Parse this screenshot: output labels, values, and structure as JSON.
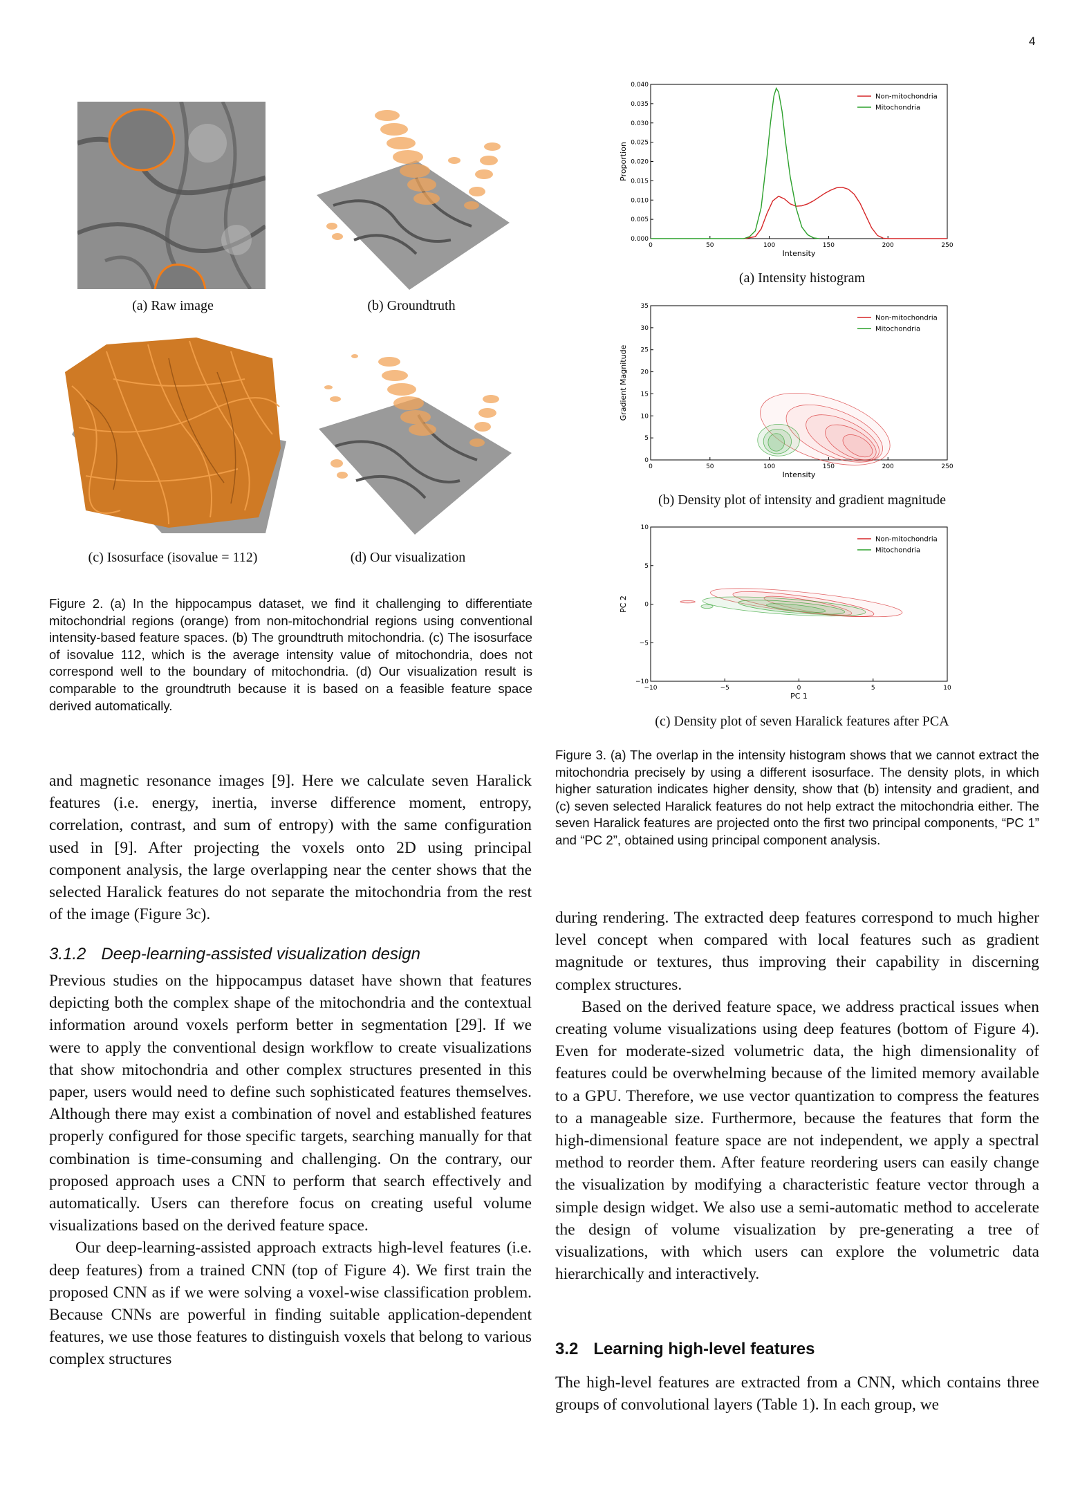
{
  "page_number": "4",
  "figure2": {
    "subcaptions": [
      "(a) Raw image",
      "(b) Groundtruth",
      "(c) Isosurface (isovalue = 112)",
      "(d) Our visualization"
    ],
    "caption": "Figure 2. (a) In the hippocampus dataset, we find it challenging to differentiate mitochondrial regions (orange) from non-mitochondrial regions using conventional intensity-based feature spaces. (b) The groundtruth mitochondria. (c) The isosurface of isovalue 112, which is the average intensity value of mitochondria, does not correspond well to the boundary of mitochondria. (d) Our visualization result is comparable to the groundtruth because it is based on a feasible feature space derived automatically."
  },
  "figure3": {
    "subcaptions": [
      "(a) Intensity histogram",
      "(b) Density plot of intensity and gradient magnitude",
      "(c) Density plot of seven Haralick features after PCA"
    ],
    "caption": "Figure 3. (a) The overlap in the intensity histogram shows that we cannot extract the mitochondria precisely by using a different isosurface. The density plots, in which higher saturation indicates higher density, show that (b) intensity and gradient, and (c) seven selected Haralick features do not help extract the mitochondria either. The seven Haralick features are projected onto the first two principal components, “PC 1” and “PC 2”, obtained using principal component analysis."
  },
  "chart_data": [
    {
      "type": "line",
      "xlabel": "Intensity",
      "ylabel": "Proportion",
      "xlim": [
        0,
        255
      ],
      "ylim": [
        0,
        0.04
      ],
      "xticks": [
        "0",
        "50",
        "100",
        "150",
        "200",
        "250"
      ],
      "yticks": [
        "0.000",
        "0.005",
        "0.010",
        "0.015",
        "0.020",
        "0.025",
        "0.030",
        "0.035",
        "0.040"
      ],
      "legend": "top-right",
      "series": [
        {
          "name": "Non-mitochondria",
          "color": "#d62728",
          "x": [
            80,
            90,
            95,
            100,
            105,
            110,
            115,
            120,
            125,
            130,
            135,
            140,
            145,
            150,
            155,
            160,
            165,
            170,
            175,
            180,
            185,
            190,
            195,
            200,
            205
          ],
          "y": [
            0,
            0.0005,
            0.0025,
            0.0065,
            0.0098,
            0.011,
            0.0103,
            0.009,
            0.0084,
            0.0085,
            0.009,
            0.0098,
            0.0108,
            0.0118,
            0.0126,
            0.0132,
            0.0133,
            0.0128,
            0.0115,
            0.0092,
            0.006,
            0.0028,
            0.0008,
            0.0001,
            0
          ]
        },
        {
          "name": "Mitochondria",
          "color": "#2ca02c",
          "x": [
            80,
            85,
            90,
            95,
            100,
            103,
            106,
            108,
            110,
            113,
            116,
            120,
            125,
            130,
            135,
            140,
            145
          ],
          "y": [
            0,
            0.0005,
            0.002,
            0.008,
            0.021,
            0.03,
            0.037,
            0.039,
            0.038,
            0.033,
            0.025,
            0.016,
            0.008,
            0.003,
            0.001,
            0.0002,
            0
          ]
        }
      ]
    },
    {
      "type": "scatter",
      "xlabel": "Intensity",
      "ylabel": "Gradient Magnitude",
      "xlim": [
        0,
        255
      ],
      "ylim": [
        0,
        35
      ],
      "xticks": [
        "0",
        "50",
        "100",
        "150",
        "200",
        "250"
      ],
      "yticks": [
        "0",
        "5",
        "10",
        "15",
        "20",
        "25",
        "30",
        "35"
      ],
      "legend": "top-right",
      "series": [
        {
          "name": "Non-mitochondria",
          "color": "#d62728",
          "kind": "density"
        },
        {
          "name": "Mitochondria",
          "color": "#2ca02c",
          "kind": "density"
        }
      ]
    },
    {
      "type": "scatter",
      "xlabel": "PC 1",
      "ylabel": "PC 2",
      "xlim": [
        -10,
        10
      ],
      "ylim": [
        -10,
        10
      ],
      "xticks": [
        "−10",
        "−5",
        "0",
        "5",
        "10"
      ],
      "yticks": [
        "−10",
        "−5",
        "0",
        "5",
        "10"
      ],
      "legend": "top-right",
      "series": [
        {
          "name": "Non-mitochondria",
          "color": "#d62728",
          "kind": "density"
        },
        {
          "name": "Mitochondria",
          "color": "#2ca02c",
          "kind": "density"
        }
      ]
    }
  ],
  "left_column": {
    "p1": "and magnetic resonance images [9]. Here we calculate seven Haralick features (i.e. energy, inertia, inverse difference moment, entropy, correlation, contrast, and sum of entropy) with the same configuration used in [9]. After projecting the voxels onto 2D using principal component analysis, the large overlapping near the center shows that the selected Haralick features do not separate the mitochondria from the rest of the image (Figure 3c).",
    "section_num": "3.1.2",
    "section_title": "Deep-learning-assisted visualization design",
    "p2": "Previous studies on the hippocampus dataset have shown that features depicting both the complex shape of the mitochondria and the contextual information around voxels perform better in segmentation [29]. If we were to apply the conventional design workflow to create visualizations that show mitochondria and other complex structures presented in this paper, users would need to define such sophisticated features themselves. Although there may exist a combination of novel and established features properly configured for those specific targets, searching manually for that combination is time-consuming and challenging. On the contrary, our proposed approach uses a CNN to perform that search effectively and automatically. Users can therefore focus on creating useful volume visualizations based on the derived feature space.",
    "p3": "Our deep-learning-assisted approach extracts high-level features (i.e. deep features) from a trained CNN (top of Figure 4). We first train the proposed CNN as if we were solving a voxel-wise classification problem. Because CNNs are powerful in finding suitable application-dependent features, we use those features to distinguish voxels that belong to various complex structures"
  },
  "right_column": {
    "p1": "during rendering. The extracted deep features correspond to much higher level concept when compared with local features such as gradient magnitude or textures, thus improving their capability in discerning complex structures.",
    "p2": "Based on the derived feature space, we address practical issues when creating volume visualizations using deep features (bottom of Figure 4). Even for moderate-sized volumetric data, the high dimensionality of features could be overwhelming because of the limited memory available to a GPU. Therefore, we use vector quantization to compress the features to a manageable size. Furthermore, because the features that form the high-dimensional feature space are not independent, we apply a spectral method to reorder them. After feature reordering users can easily change the visualization by modifying a characteristic feature vector through a simple design widget. We also use a semi-automatic method to accelerate the design of volume visualization by pre-generating a tree of visualizations, with which users can explore the volumetric data hierarchically and interactively.",
    "section_num": "3.2",
    "section_title": "Learning high-level features",
    "p3": "The high-level features are extracted from a CNN, which contains three groups of convolutional layers (Table 1). In each group, we"
  }
}
